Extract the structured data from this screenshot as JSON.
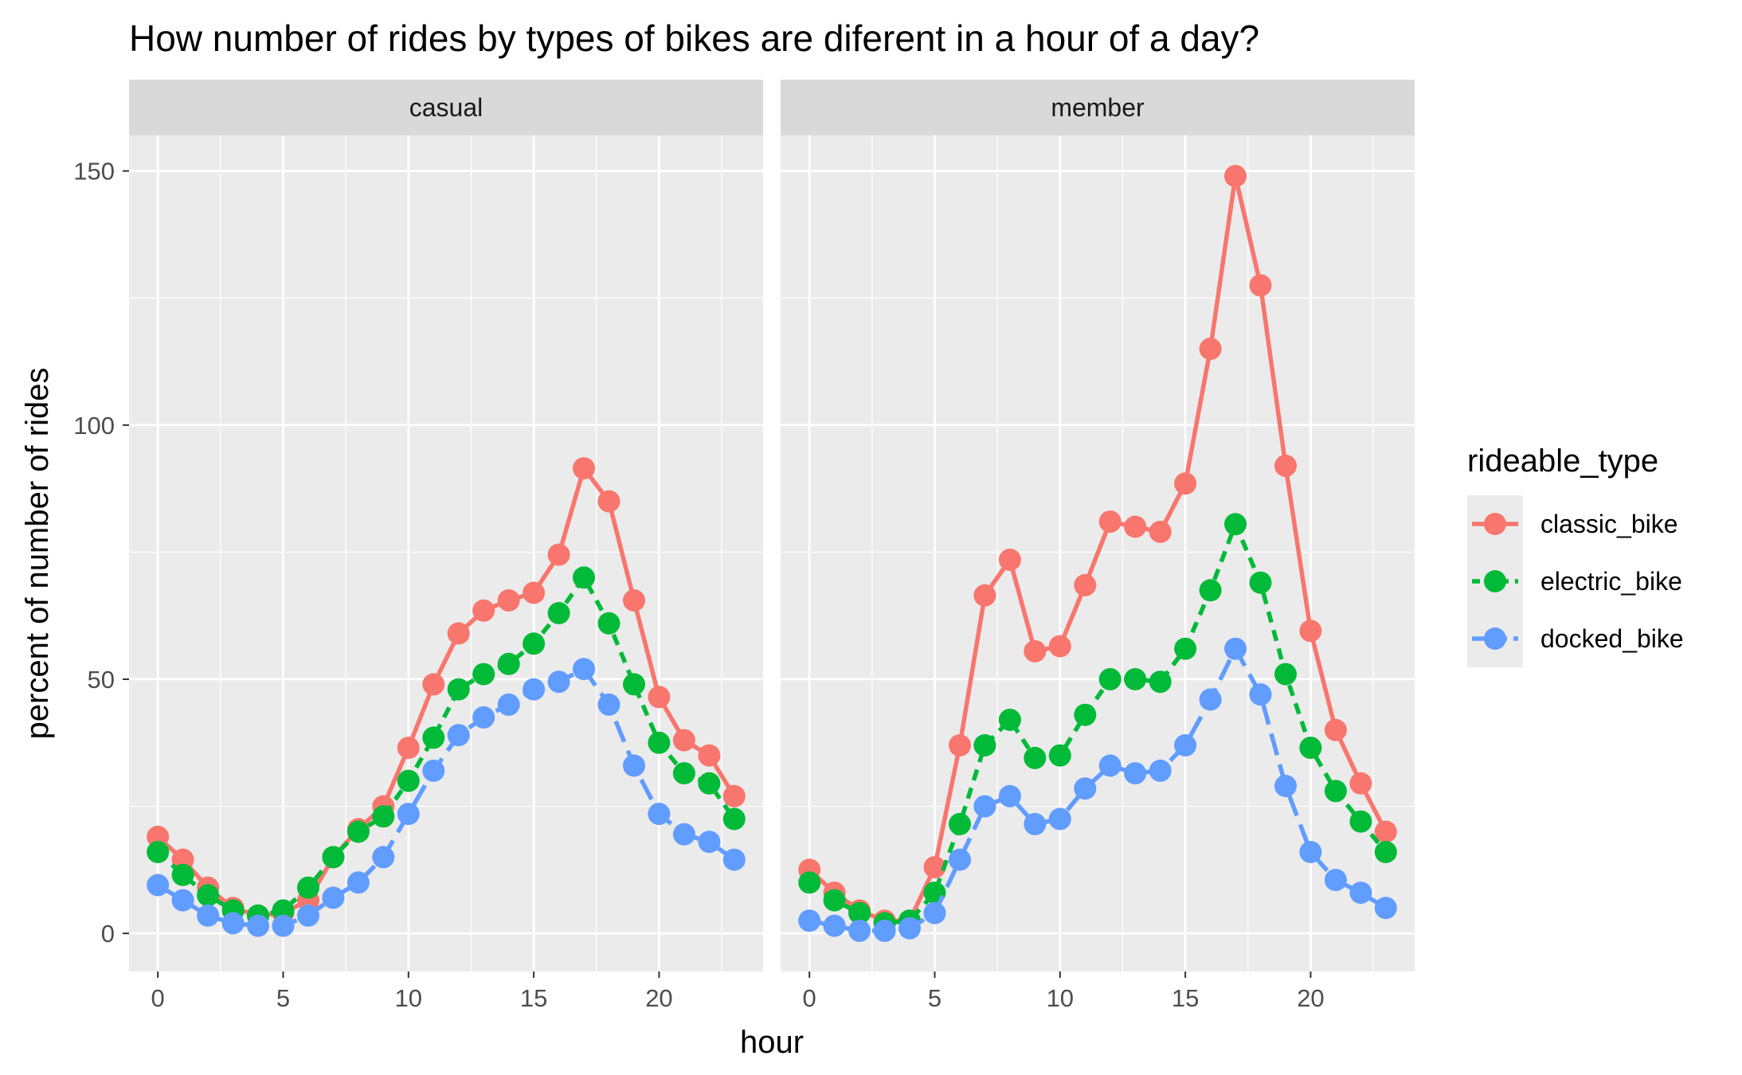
{
  "chart_data": {
    "type": "line",
    "title": "How number of rides by types of bikes are diferent in a hour of a day?",
    "xlabel": "hour",
    "ylabel": "percent of number of rides",
    "x": [
      0,
      1,
      2,
      3,
      4,
      5,
      6,
      7,
      8,
      9,
      10,
      11,
      12,
      13,
      14,
      15,
      16,
      17,
      18,
      19,
      20,
      21,
      22,
      23
    ],
    "xlim": [
      -1.15,
      24.15
    ],
    "ylim": [
      -7.5,
      157
    ],
    "xticks": [
      "0",
      "5",
      "10",
      "15",
      "20"
    ],
    "yticks": [
      "0",
      "50",
      "100",
      "150"
    ],
    "grid": true,
    "legend_title": "rideable_type",
    "legend_position": "right",
    "facets": [
      {
        "label": "casual",
        "series": [
          {
            "name": "classic_bike",
            "color": "#F8766D",
            "linetype": "solid",
            "values": [
              19,
              14.5,
              9,
              5,
              3.5,
              4,
              6.5,
              15,
              20.5,
              25,
              36.5,
              49,
              59,
              63.5,
              65.5,
              67,
              74.5,
              91.5,
              85,
              65.5,
              46.5,
              38,
              35,
              27
            ]
          },
          {
            "name": "electric_bike",
            "color": "#00BA38",
            "linetype": "dashed",
            "values": [
              16,
              11.5,
              7.5,
              4.5,
              3.5,
              4.5,
              9,
              15,
              20,
              23,
              30,
              38.5,
              48,
              51,
              53,
              57,
              63,
              70,
              61,
              49,
              37.5,
              31.5,
              29.5,
              22.5
            ]
          },
          {
            "name": "docked_bike",
            "color": "#619CFF",
            "linetype": "longdash",
            "values": [
              9.5,
              6.5,
              3.5,
              2,
              1.5,
              1.5,
              3.5,
              7,
              10,
              15,
              23.5,
              32,
              39,
              42.5,
              45,
              48,
              49.5,
              52,
              45,
              33,
              23.5,
              19.5,
              18,
              14.5
            ]
          }
        ]
      },
      {
        "label": "member",
        "series": [
          {
            "name": "classic_bike",
            "color": "#F8766D",
            "linetype": "solid",
            "values": [
              12.5,
              8,
              4.5,
              2.5,
              2.5,
              13,
              37,
              66.5,
              73.5,
              55.5,
              56.5,
              68.5,
              81,
              80,
              79,
              88.5,
              115,
              149,
              127.5,
              92,
              59.5,
              40,
              29.5,
              20
            ]
          },
          {
            "name": "electric_bike",
            "color": "#00BA38",
            "linetype": "dashed",
            "values": [
              10,
              6.5,
              4,
              2,
              2.5,
              8,
              21.5,
              37,
              42,
              34.5,
              35,
              43,
              50,
              50,
              49.5,
              56,
              67.5,
              80.5,
              69,
              51,
              36.5,
              28,
              22,
              16
            ]
          },
          {
            "name": "docked_bike",
            "color": "#619CFF",
            "linetype": "longdash",
            "values": [
              2.5,
              1.5,
              0.5,
              0.5,
              1,
              4,
              14.5,
              25,
              27,
              21.5,
              22.5,
              28.5,
              33,
              31.5,
              32,
              37,
              46,
              56,
              47,
              29,
              16,
              10.5,
              8,
              5
            ]
          }
        ]
      }
    ]
  },
  "colors": {
    "panel_bg": "#EBEBEB",
    "strip_bg": "#D9D9D9",
    "grid": "#FFFFFF",
    "legend_key_bg": "#EBEBEB"
  }
}
